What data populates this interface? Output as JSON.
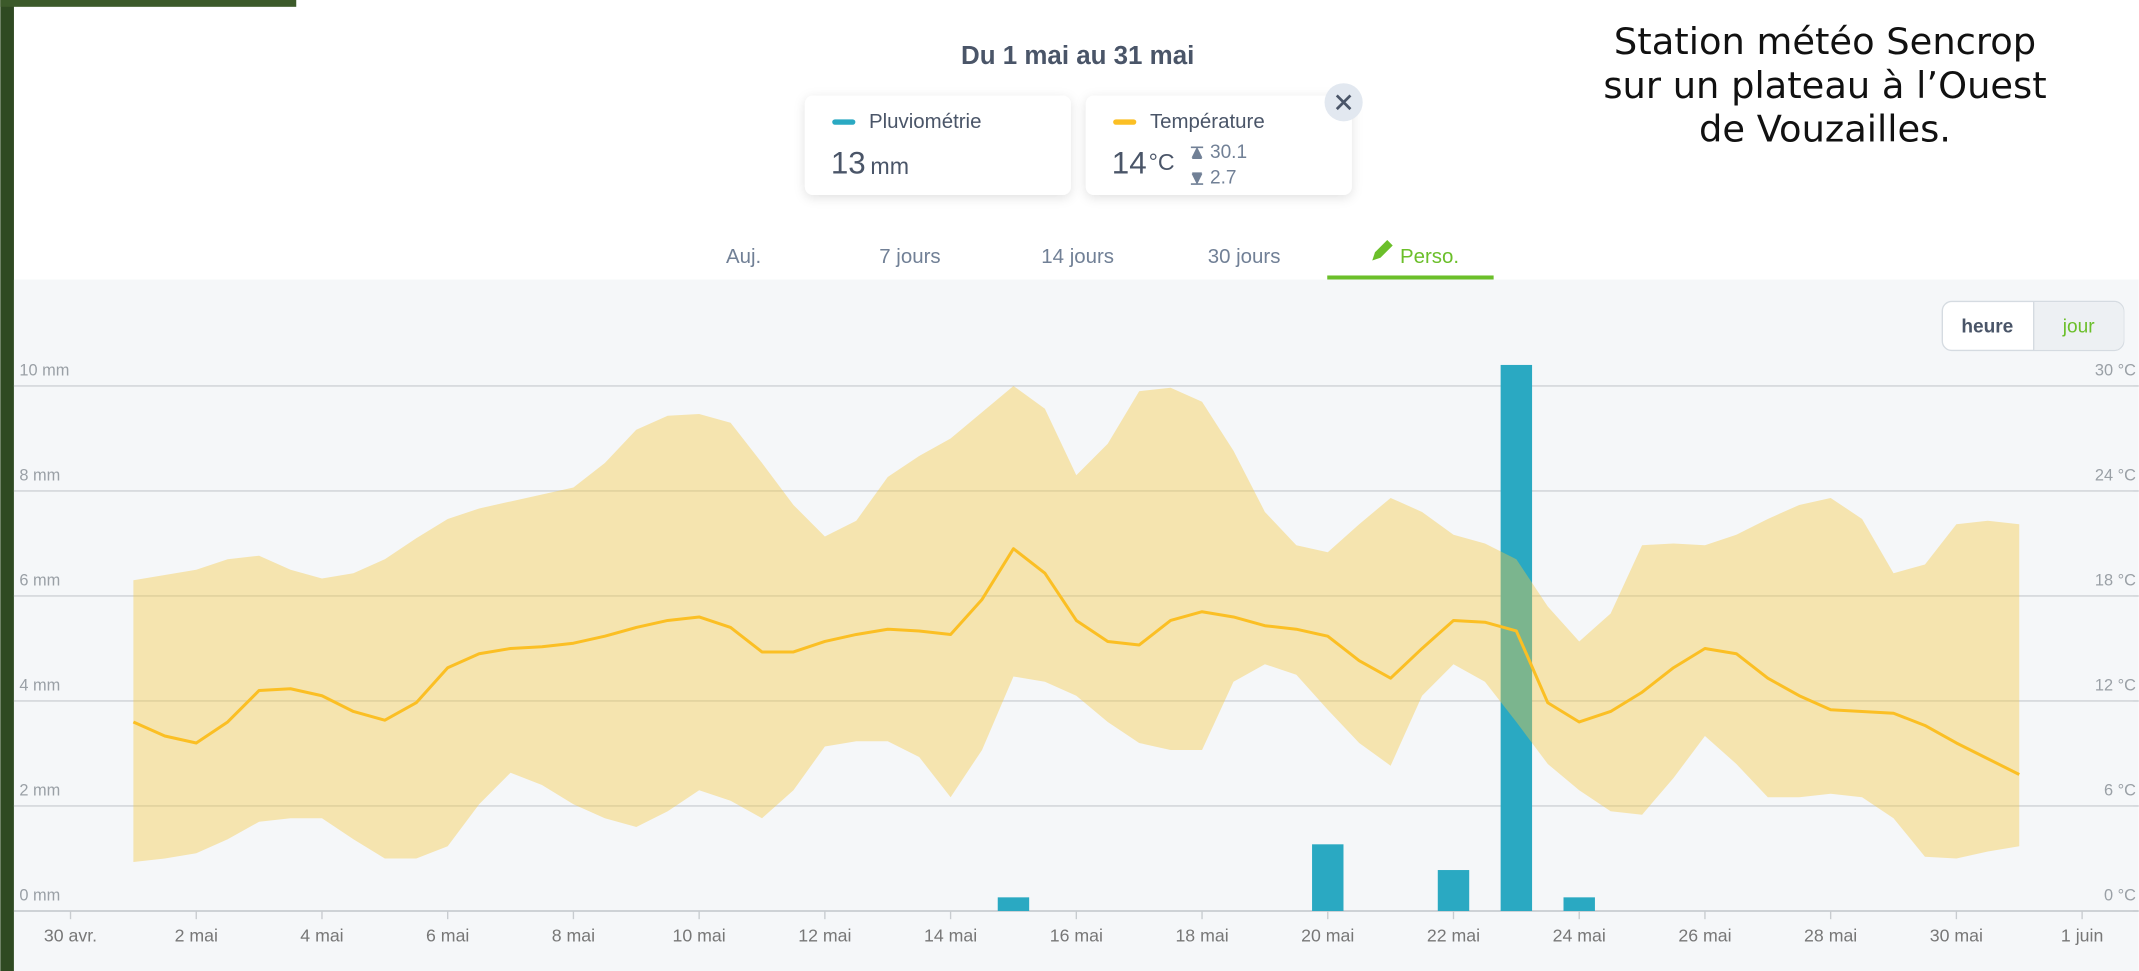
{
  "header": {
    "title": "Du 1 mai au 31 mai"
  },
  "cards": [
    {
      "value": "13",
      "unit": "mm"
    },
    {
      "value": "14",
      "unit": "°C",
      "max": "30.1",
      "min": "2.7"
    }
  ],
  "tabs": {
    "items": [
      "Auj.",
      "7 jours",
      "14 jours",
      "30 jours",
      "Perso."
    ],
    "active": 4
  },
  "toggle": {
    "items": [
      "heure",
      "jour"
    ],
    "active": 1
  },
  "caption": {
    "lines": [
      "Station météo Sencrop",
      "sur un plateau à l’Ouest",
      "de Vouzailles."
    ]
  },
  "chart_data": {
    "type": "combo",
    "grid": true,
    "xlim": [
      -0.9,
      32.9
    ],
    "xticks": [
      {
        "value": 0,
        "label": "30 avr."
      },
      {
        "value": 2,
        "label": "2 mai"
      },
      {
        "value": 4,
        "label": "4 mai"
      },
      {
        "value": 6,
        "label": "6 mai"
      },
      {
        "value": 8,
        "label": "8 mai"
      },
      {
        "value": 10,
        "label": "10 mai"
      },
      {
        "value": 12,
        "label": "12 mai"
      },
      {
        "value": 14,
        "label": "14 mai"
      },
      {
        "value": 16,
        "label": "16 mai"
      },
      {
        "value": 18,
        "label": "18 mai"
      },
      {
        "value": 20,
        "label": "20 mai"
      },
      {
        "value": 22,
        "label": "22 mai"
      },
      {
        "value": 24,
        "label": "24 mai"
      },
      {
        "value": 26,
        "label": "26 mai"
      },
      {
        "value": 28,
        "label": "28 mai"
      },
      {
        "value": 30,
        "label": "30 mai"
      },
      {
        "value": 32,
        "label": "1 juin"
      }
    ],
    "ylim": [
      0,
      12
    ],
    "yticks": [
      {
        "value": 0,
        "label": "0 mm"
      },
      {
        "value": 2,
        "label": "2 mm"
      },
      {
        "value": 4,
        "label": "4 mm"
      },
      {
        "value": 6,
        "label": "6 mm"
      },
      {
        "value": 8,
        "label": "8 mm"
      },
      {
        "value": 10,
        "label": "10 mm"
      }
    ],
    "y2lim": [
      0,
      36
    ],
    "y2ticks": [
      {
        "value": 0,
        "label": "0 °C"
      },
      {
        "value": 6,
        "label": "6 °C"
      },
      {
        "value": 12,
        "label": "12 °C"
      },
      {
        "value": 18,
        "label": "18 °C"
      },
      {
        "value": 24,
        "label": "24 °C"
      },
      {
        "value": 30,
        "label": "30 °C"
      }
    ],
    "series": [
      {
        "name": "Pluviométrie",
        "type": "bar",
        "color": "#2aa9c2",
        "axis": "y",
        "x": [
          15,
          20,
          22,
          23,
          24
        ],
        "values": [
          0.26,
          1.27,
          0.78,
          10.4,
          0.26
        ]
      },
      {
        "name": "Température",
        "type": "band",
        "color": "#fbbf24",
        "band_color": "#f5c842",
        "axis": "y2",
        "x": [
          1,
          1.5,
          2,
          2.5,
          3,
          3.5,
          4,
          4.5,
          5,
          5.5,
          6,
          6.5,
          7,
          7.5,
          8,
          8.5,
          9,
          9.5,
          10,
          10.5,
          11,
          11.5,
          12,
          12.5,
          13,
          13.5,
          14,
          14.5,
          15,
          15.5,
          16,
          16.5,
          17,
          17.5,
          18,
          18.5,
          19,
          19.5,
          20,
          20.5,
          21,
          21.5,
          22,
          22.5,
          23,
          23.5,
          24,
          24.5,
          25,
          25.5,
          26,
          26.5,
          27,
          27.5,
          28,
          28.5,
          29,
          29.5,
          30,
          30.5,
          31
        ],
        "values": [
          10.8,
          10.0,
          9.6,
          10.8,
          12.6,
          12.7,
          12.3,
          11.4,
          10.9,
          11.9,
          13.9,
          14.7,
          15.0,
          15.1,
          15.3,
          15.7,
          16.2,
          16.6,
          16.8,
          16.2,
          14.8,
          14.8,
          15.4,
          15.8,
          16.1,
          16.0,
          15.8,
          17.8,
          20.7,
          19.3,
          16.6,
          15.4,
          15.2,
          16.6,
          17.1,
          16.8,
          16.3,
          16.1,
          15.7,
          14.3,
          13.3,
          15.0,
          16.6,
          16.5,
          16.0,
          11.9,
          10.8,
          11.4,
          12.5,
          13.9,
          15.0,
          14.7,
          13.3,
          12.3,
          11.5,
          11.4,
          11.3,
          10.6,
          9.6,
          8.7,
          7.8
        ],
        "high": [
          18.9,
          19.2,
          19.5,
          20.1,
          20.3,
          19.5,
          19.0,
          19.3,
          20.1,
          21.3,
          22.4,
          23.0,
          23.4,
          23.8,
          24.2,
          25.6,
          27.5,
          28.3,
          28.4,
          27.9,
          25.6,
          23.2,
          21.4,
          22.3,
          24.8,
          26.0,
          27.0,
          28.5,
          30.0,
          28.7,
          24.9,
          26.7,
          29.7,
          29.9,
          29.1,
          26.3,
          22.8,
          20.9,
          20.5,
          22.1,
          23.6,
          22.8,
          21.5,
          21.0,
          20.1,
          17.4,
          15.4,
          17.0,
          20.9,
          21.0,
          20.9,
          21.5,
          22.4,
          23.2,
          23.6,
          22.4,
          19.3,
          19.8,
          22.1,
          22.3,
          22.1
        ],
        "low": [
          2.8,
          3.0,
          3.3,
          4.1,
          5.1,
          5.3,
          5.3,
          4.1,
          3.0,
          3.0,
          3.7,
          6.1,
          7.9,
          7.2,
          6.1,
          5.3,
          4.8,
          5.7,
          6.9,
          6.3,
          5.3,
          6.9,
          9.4,
          9.7,
          9.7,
          8.8,
          6.5,
          9.2,
          13.4,
          13.1,
          12.3,
          10.8,
          9.6,
          9.2,
          9.2,
          13.1,
          14.1,
          13.5,
          11.5,
          9.6,
          8.3,
          12.3,
          14.1,
          13.1,
          10.8,
          8.4,
          6.9,
          5.7,
          5.5,
          7.6,
          10.0,
          8.4,
          6.5,
          6.5,
          6.7,
          6.5,
          5.3,
          3.1,
          3.0,
          3.4,
          3.7
        ]
      }
    ]
  }
}
